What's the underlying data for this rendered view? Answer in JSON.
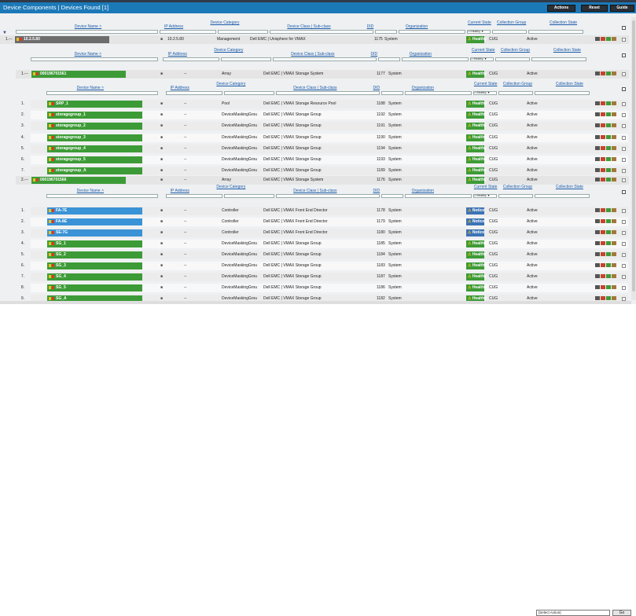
{
  "header": {
    "title": "Device Components | Devices Found [1]",
    "buttons": [
      "Actions",
      "Reset",
      "Guide"
    ]
  },
  "columns": {
    "device_name": "Device Name ˄",
    "ip_address": "IP Address",
    "device_category": "Device Category",
    "device_class": "Device Class | Sub-class",
    "did": "DID",
    "organization": "Organization",
    "current_state": "Current State",
    "collection_group": "Collection Group",
    "collection_state": "Collection State",
    "state_filter": ">=Healthy ▼"
  },
  "rows": [
    {
      "num": "1.",
      "name": "10.2.5.80",
      "ip": "10.2.5.80",
      "category": "Management",
      "class": "Dell EMC | Unisphere for VMAX",
      "did": "1175",
      "org": "System",
      "state": "Healthy",
      "group": "CUG",
      "cstate": "Active"
    },
    {
      "num": "1.",
      "name": "000196701561",
      "ip": "--",
      "category": "Array",
      "class": "Dell EMC | VMAX Storage System",
      "did": "1177",
      "org": "System",
      "state": "Healthy",
      "group": "CUG",
      "cstate": "Active"
    },
    {
      "num": "1.",
      "name": "SRP_1",
      "ip": "--",
      "category": "Pool",
      "class": "Dell EMC | VMAX Storage Resource Pool",
      "did": "1188",
      "org": "System",
      "state": "Healthy",
      "group": "CUG",
      "cstate": "Active"
    },
    {
      "num": "2.",
      "name": "storagegroup_1",
      "ip": "--",
      "category": "DeviceMaskingGrou",
      "class": "Dell EMC | VMAX Storage Group",
      "did": "1192",
      "org": "System",
      "state": "Healthy",
      "group": "CUG",
      "cstate": "Active"
    },
    {
      "num": "3.",
      "name": "storagegroup_2",
      "ip": "--",
      "category": "DeviceMaskingGrou",
      "class": "Dell EMC | VMAX Storage Group",
      "did": "1191",
      "org": "System",
      "state": "Healthy",
      "group": "CUG",
      "cstate": "Active"
    },
    {
      "num": "4.",
      "name": "storagegroup_3",
      "ip": "--",
      "category": "DeviceMaskingGrou",
      "class": "Dell EMC | VMAX Storage Group",
      "did": "1190",
      "org": "System",
      "state": "Healthy",
      "group": "CUG",
      "cstate": "Active"
    },
    {
      "num": "5.",
      "name": "storagegroup_4",
      "ip": "--",
      "category": "DeviceMaskingGrou",
      "class": "Dell EMC | VMAX Storage Group",
      "did": "1194",
      "org": "System",
      "state": "Healthy",
      "group": "CUG",
      "cstate": "Active"
    },
    {
      "num": "6.",
      "name": "storagegroup_5",
      "ip": "--",
      "category": "DeviceMaskingGrou",
      "class": "Dell EMC | VMAX Storage Group",
      "did": "1193",
      "org": "System",
      "state": "Healthy",
      "group": "CUG",
      "cstate": "Active"
    },
    {
      "num": "7.",
      "name": "storagegroup_A",
      "ip": "--",
      "category": "DeviceMaskingGrou",
      "class": "Dell EMC | VMAX Storage Group",
      "did": "1189",
      "org": "System",
      "state": "Healthy",
      "group": "CUG",
      "cstate": "Active"
    },
    {
      "num": "2.",
      "name": "000196701566",
      "ip": "--",
      "category": "Array",
      "class": "Dell EMC | VMAX Storage System",
      "did": "1176",
      "org": "System",
      "state": "Healthy",
      "group": "CUG",
      "cstate": "Active"
    },
    {
      "num": "1.",
      "name": "FA-7E",
      "ip": "--",
      "category": "Controller",
      "class": "Dell EMC | VMAX Front End Director",
      "did": "1178",
      "org": "System",
      "state": "Notice",
      "group": "CUG",
      "cstate": "Active"
    },
    {
      "num": "2.",
      "name": "FA-8E",
      "ip": "--",
      "category": "Controller",
      "class": "Dell EMC | VMAX Front End Director",
      "did": "1179",
      "org": "System",
      "state": "Notice",
      "group": "CUG",
      "cstate": "Active"
    },
    {
      "num": "3.",
      "name": "SE-7G",
      "ip": "--",
      "category": "Controller",
      "class": "Dell EMC | VMAX Front End Director",
      "did": "1180",
      "org": "System",
      "state": "Notice",
      "group": "CUG",
      "cstate": "Active"
    },
    {
      "num": "4.",
      "name": "SG_1",
      "ip": "--",
      "category": "DeviceMaskingGrou",
      "class": "Dell EMC | VMAX Storage Group",
      "did": "1185",
      "org": "System",
      "state": "Healthy",
      "group": "CUG",
      "cstate": "Active"
    },
    {
      "num": "5.",
      "name": "SG_2",
      "ip": "--",
      "category": "DeviceMaskingGrou",
      "class": "Dell EMC | VMAX Storage Group",
      "did": "1184",
      "org": "System",
      "state": "Healthy",
      "group": "CUG",
      "cstate": "Active"
    },
    {
      "num": "6.",
      "name": "SG_3",
      "ip": "--",
      "category": "DeviceMaskingGrou",
      "class": "Dell EMC | VMAX Storage Group",
      "did": "1183",
      "org": "System",
      "state": "Healthy",
      "group": "CUG",
      "cstate": "Active"
    },
    {
      "num": "7.",
      "name": "SG_4",
      "ip": "--",
      "category": "DeviceMaskingGrou",
      "class": "Dell EMC | VMAX Storage Group",
      "did": "1187",
      "org": "System",
      "state": "Healthy",
      "group": "CUG",
      "cstate": "Active"
    },
    {
      "num": "8.",
      "name": "SG_5",
      "ip": "--",
      "category": "DeviceMaskingGrou",
      "class": "Dell EMC | VMAX Storage Group",
      "did": "1186",
      "org": "System",
      "state": "Healthy",
      "group": "CUG",
      "cstate": "Active"
    },
    {
      "num": "9.",
      "name": "SG_A",
      "ip": "--",
      "category": "DeviceMaskingGrou",
      "class": "Dell EMC | VMAX Storage Group",
      "did": "1182",
      "org": "System",
      "state": "Healthy",
      "group": "CUG",
      "cstate": "Active"
    }
  ],
  "footer": {
    "select_action": "[Select Action]",
    "go": "Go"
  },
  "colors": {
    "header_blue": "#1c79b8",
    "healthy_green": "#3d9b37",
    "notice_blue": "#3d73b5",
    "controller_blue": "#3a93d6"
  }
}
